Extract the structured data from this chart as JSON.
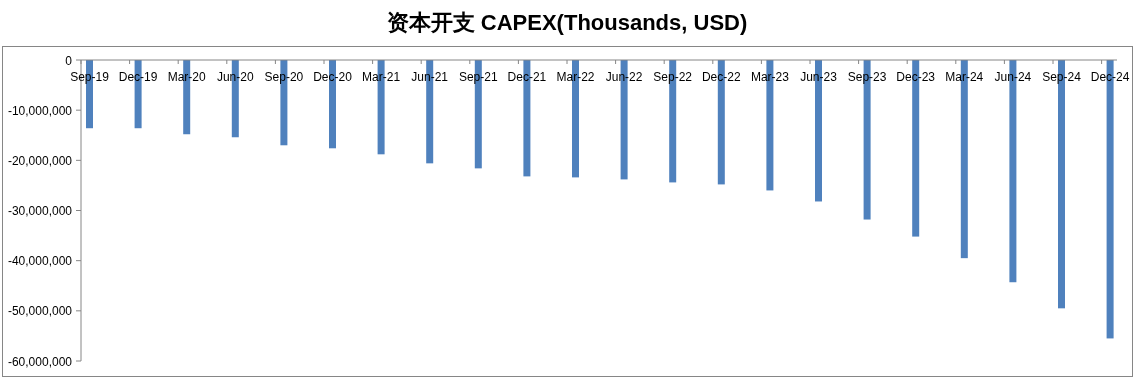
{
  "chart_data": {
    "type": "bar",
    "title": "资本开支 CAPEX(Thousands, USD)",
    "categories": [
      "Sep-19",
      "Dec-19",
      "Mar-20",
      "Jun-20",
      "Sep-20",
      "Dec-20",
      "Mar-21",
      "Jun-21",
      "Sep-21",
      "Dec-21",
      "Mar-22",
      "Jun-22",
      "Sep-22",
      "Dec-22",
      "Mar-23",
      "Jun-23",
      "Sep-23",
      "Dec-23",
      "Mar-24",
      "Jun-24",
      "Sep-24",
      "Dec-24"
    ],
    "values": [
      -13600000,
      -13600000,
      -14800000,
      -15400000,
      -17000000,
      -17600000,
      -18800000,
      -20600000,
      -21600000,
      -23200000,
      -23400000,
      -23800000,
      -24400000,
      -24800000,
      -26000000,
      -28200000,
      -31800000,
      -35200000,
      -39500000,
      -44300000,
      -49500000,
      -55500000
    ],
    "color": "#4f81bd",
    "ylim": [
      -60000000,
      0
    ],
    "yticks": [
      0,
      {
        "value": -10000000,
        "label": "-10,000,000"
      },
      {
        "value": -20000000,
        "label": "-20,000,000"
      },
      {
        "value": -30000000,
        "label": "-30,000,000"
      },
      {
        "value": -40000000,
        "label": "-40,000,000"
      },
      {
        "value": -50000000,
        "label": "-50,000,000"
      },
      {
        "value": -60000000,
        "label": "-60,000,000"
      }
    ],
    "grid": false,
    "legend": false
  }
}
